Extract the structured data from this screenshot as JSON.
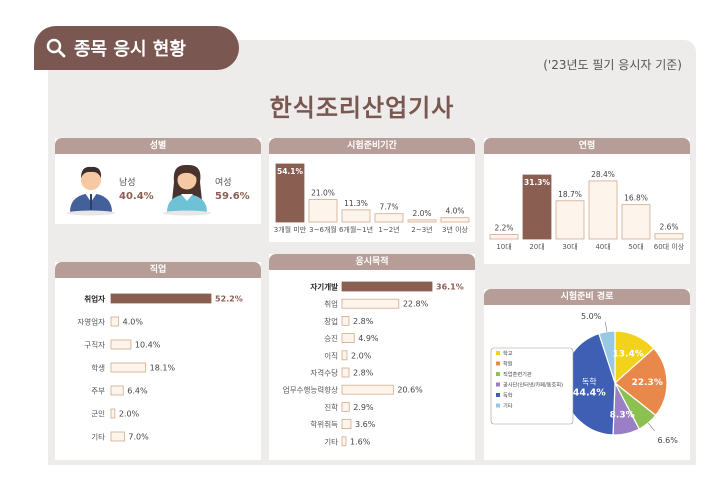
{
  "header": {
    "title": "종목 응시 현황",
    "basis": "('23년도 필기 응시자 기준)"
  },
  "main_title": "한식조리산업기사",
  "colors": {
    "dark": "#8b5e52",
    "light": "#fdf5ec",
    "light_border": "#d4a98b",
    "panel_header": "#b79d98",
    "male_value": "#8b5e52",
    "female_value": "#8b5e52"
  },
  "panels": {
    "gender": "성별",
    "prep_period": "시험준비기간",
    "age": "연령",
    "job": "직업",
    "purpose": "응시목적",
    "prep_path": "시험준비 경로"
  },
  "gender": {
    "male_label": "남성",
    "male_value": "40.4%",
    "female_label": "여성",
    "female_value": "59.6%"
  },
  "chart_data": [
    {
      "id": "prep_period",
      "type": "bar",
      "categories": [
        "3개월 미만",
        "3~6개월",
        "6개월~1년",
        "1~2년",
        "2~3년",
        "3년 이상"
      ],
      "values": [
        54.1,
        21.0,
        11.3,
        7.7,
        2.0,
        4.0
      ],
      "labels": [
        "54.1%",
        "21.0%",
        "11.3%",
        "7.7%",
        "2.0%",
        "4.0%"
      ],
      "highlight": 0,
      "ylim": [
        0,
        54.1
      ]
    },
    {
      "id": "age",
      "type": "bar",
      "categories": [
        "10대",
        "20대",
        "30대",
        "40대",
        "50대",
        "60대 이상"
      ],
      "values": [
        2.2,
        31.3,
        18.7,
        28.4,
        16.8,
        2.6
      ],
      "labels": [
        "2.2%",
        "31.3%",
        "18.7%",
        "28.4%",
        "16.8%",
        "2.6%"
      ],
      "highlight": 1,
      "ylim": [
        0,
        31.3
      ]
    },
    {
      "id": "job",
      "type": "bar",
      "orientation": "horizontal",
      "categories": [
        "취업자",
        "자영업자",
        "구직자",
        "학생",
        "주부",
        "군인",
        "기타"
      ],
      "values": [
        52.2,
        4.0,
        10.4,
        18.1,
        6.4,
        2.0,
        7.0
      ],
      "labels": [
        "52.2%",
        "4.0%",
        "10.4%",
        "18.1%",
        "6.4%",
        "2.0%",
        "7.0%"
      ],
      "highlight": 0,
      "xlim": [
        0,
        52.2
      ]
    },
    {
      "id": "purpose",
      "type": "bar",
      "orientation": "horizontal",
      "categories": [
        "자기개발",
        "취업",
        "창업",
        "승진",
        "이직",
        "자격수당",
        "업무수행능력향상",
        "진학",
        "학위취득",
        "기타"
      ],
      "values": [
        36.1,
        22.8,
        2.8,
        4.9,
        2.0,
        2.8,
        20.6,
        2.9,
        3.6,
        1.6
      ],
      "labels": [
        "36.1%",
        "22.8%",
        "2.8%",
        "4.9%",
        "2.0%",
        "2.8%",
        "20.6%",
        "2.9%",
        "3.6%",
        "1.6%"
      ],
      "highlight": 0,
      "xlim": [
        0,
        36.1
      ]
    },
    {
      "id": "prep_path",
      "type": "pie",
      "categories": [
        "학교",
        "학원",
        "직업훈련기관",
        "공사단(인터넷/카페/동호회)",
        "독학",
        "기타"
      ],
      "values": [
        13.4,
        22.3,
        6.6,
        8.3,
        44.4,
        5.0
      ],
      "labels": [
        "13.4%",
        "22.3%",
        "6.6%",
        "8.3%",
        "44.4%",
        "5.0%"
      ],
      "inner_label": "독학",
      "colors": [
        "#f2d21b",
        "#e8884a",
        "#8cc152",
        "#9b7fc6",
        "#3e5fb4",
        "#98c8e6"
      ]
    }
  ]
}
